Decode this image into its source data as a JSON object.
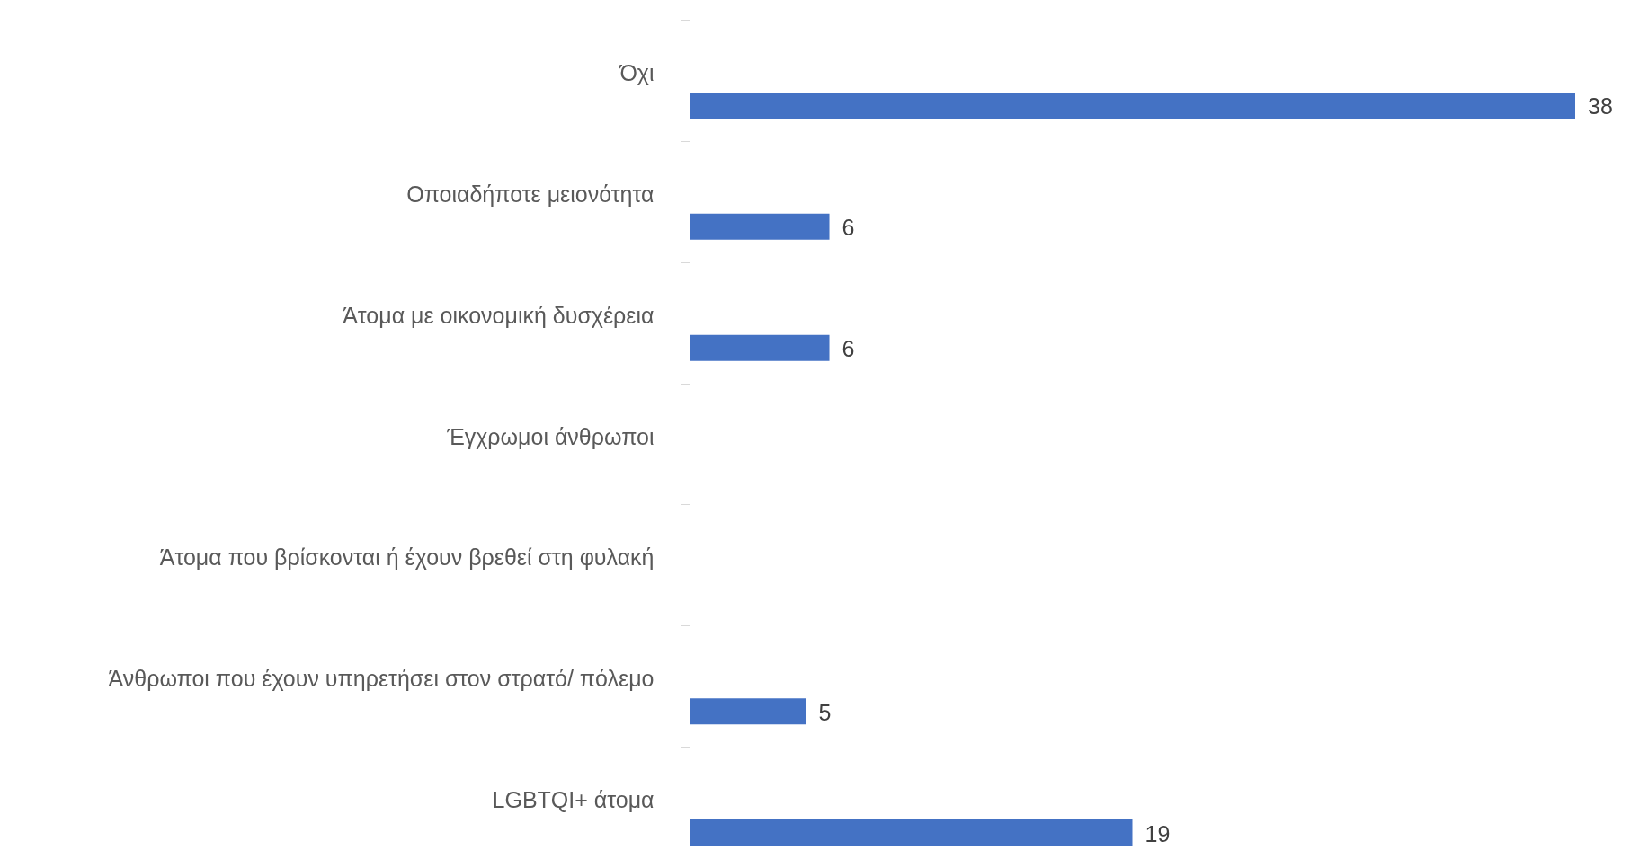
{
  "chart_data": {
    "type": "bar",
    "orientation": "horizontal",
    "categories": [
      "Όχι",
      "Οποιαδήποτε μειονότητα",
      "Άτομα με οικονομική δυσχέρεια",
      "Έγχρωμοι άνθρωποι",
      "Άτομα που βρίσκονται ή έχουν βρεθεί στη φυλακή",
      "Άνθρωποι που έχουν υπηρετήσει στον στρατό/ πόλεμο",
      "LGBTQI+ άτομα"
    ],
    "values": [
      38,
      6,
      6,
      null,
      null,
      5,
      19
    ],
    "color": "#4472c4",
    "data_labels": true,
    "grid": false
  }
}
